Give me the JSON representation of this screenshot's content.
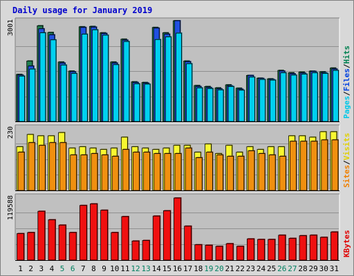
{
  "chart_data": {
    "type": "bar",
    "title": "Daily usage for January 2019",
    "categories": [
      "1",
      "2",
      "3",
      "4",
      "5",
      "6",
      "7",
      "8",
      "9",
      "10",
      "11",
      "12",
      "13",
      "14",
      "15",
      "16",
      "17",
      "18",
      "19",
      "20",
      "21",
      "22",
      "23",
      "24",
      "25",
      "26",
      "27",
      "28",
      "29",
      "30",
      "31"
    ],
    "weekend_days": [
      "5",
      "6",
      "12",
      "13",
      "19",
      "20",
      "26",
      "27"
    ],
    "panels": [
      {
        "name": "hits_files_pages",
        "max_label": "3001",
        "ylim": [
          0,
          3001
        ],
        "legend": [
          {
            "text": "Pages",
            "color": "#00c8e8"
          },
          {
            "text": "Files",
            "color": "#0040e0"
          },
          {
            "text": "Hits",
            "color": "#008050"
          }
        ],
        "series": [
          {
            "name": "Hits",
            "color": "#208050",
            "values": [
              1400,
              1800,
              2850,
              2650,
              1770,
              1500,
              2820,
              2830,
              2640,
              1770,
              2450,
              1180,
              1160,
              2800,
              2640,
              3000,
              1800,
              1070,
              1040,
              1000,
              1090,
              990,
              1370,
              1290,
              1270,
              1520,
              1450,
              1470,
              1500,
              1480,
              1590
            ]
          },
          {
            "name": "Files",
            "color": "#2050e0",
            "values": [
              1380,
              1650,
              2760,
              2580,
              1740,
              1480,
              2800,
              2810,
              2620,
              1740,
              2420,
              1160,
              1140,
              2780,
              2600,
              3000,
              1780,
              1040,
              1010,
              970,
              1060,
              960,
              1370,
              1280,
              1250,
              1500,
              1420,
              1440,
              1490,
              1450,
              1560
            ]
          },
          {
            "name": "Pages",
            "color": "#00d0f0",
            "values": [
              1350,
              1560,
              2640,
              2430,
              1680,
              1430,
              2600,
              2730,
              2570,
              1690,
              2380,
              1120,
              1110,
              2440,
              2520,
              2630,
              1720,
              1000,
              980,
              940,
              1040,
              930,
              1320,
              1250,
              1230,
              1450,
              1380,
              1410,
              1450,
              1430,
              1520
            ]
          }
        ]
      },
      {
        "name": "sites_visits",
        "max_label": "230",
        "ylim": [
          0,
          230
        ],
        "legend": [
          {
            "text": "Sites",
            "color": "#f08000"
          },
          {
            "text": "Visits",
            "color": "#e0d000"
          }
        ],
        "series": [
          {
            "name": "Visits",
            "color": "#f8f830",
            "values": [
              160,
              205,
              200,
              200,
              212,
              155,
              160,
              155,
              150,
              155,
              195,
              160,
              155,
              150,
              155,
              165,
              165,
              140,
              170,
              135,
              165,
              140,
              160,
              150,
              160,
              160,
              200,
              200,
              195,
              215,
              215
            ]
          },
          {
            "name": "Sites",
            "color": "#f09010",
            "values": [
              140,
              175,
              165,
              175,
              175,
              130,
              130,
              135,
              130,
              125,
              150,
              140,
              140,
              135,
              135,
              135,
              155,
              120,
              140,
              130,
              125,
              125,
              145,
              135,
              130,
              125,
              180,
              180,
              180,
              185,
              185
            ]
          }
        ]
      },
      {
        "name": "kbytes",
        "max_label": "119588",
        "ylim": [
          0,
          119588
        ],
        "legend": [
          {
            "text": "KBytes",
            "color": "#e00000"
          }
        ],
        "series": [
          {
            "name": "KBytes",
            "color": "#f01010",
            "values": [
              50000,
              52000,
              92000,
              76000,
              66000,
              52000,
              103000,
              106000,
              94000,
              52000,
              82000,
              36000,
              37000,
              83000,
              93000,
              117000,
              64000,
              29000,
              28000,
              26000,
              31000,
              26000,
              40000,
              39000,
              39000,
              47000,
              41000,
              46000,
              47000,
              43000,
              53000
            ]
          }
        ]
      }
    ]
  }
}
